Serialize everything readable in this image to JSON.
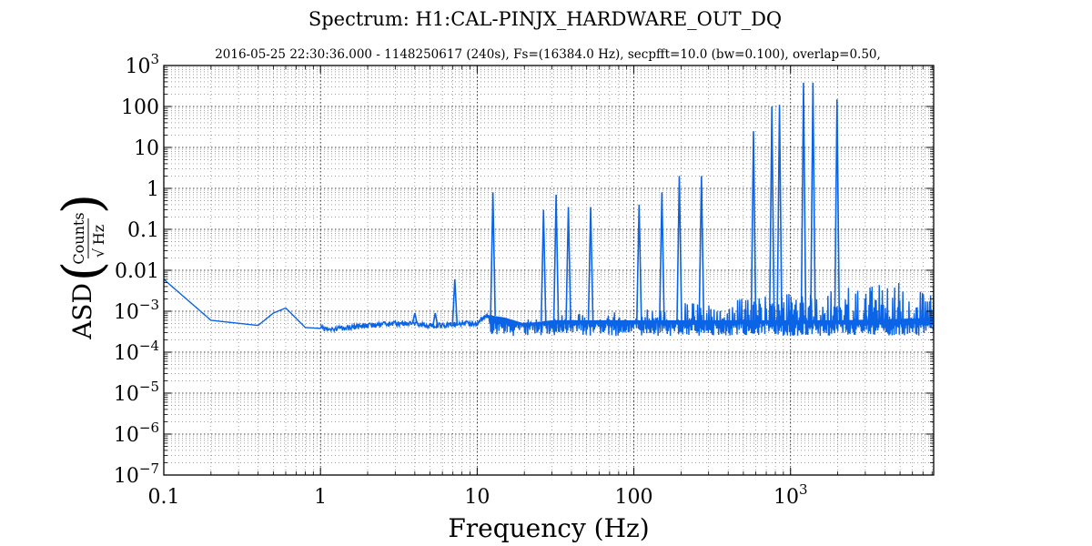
{
  "chart_data": {
    "type": "line",
    "title": "Spectrum: H1:CAL-PINJX_HARDWARE_OUT_DQ",
    "subtitle": "2016-05-25 22:30:36.000 - 1148250617 (240s), Fs=(16384.0 Hz), secpfft=10.0 (bw=0.100), overlap=0.50,",
    "xlabel": "Frequency (Hz)",
    "ylabel": {
      "prefix": "ASD",
      "numerator": "Counts",
      "denominator": "Hz"
    },
    "x_scale": "log",
    "y_scale": "log",
    "xlim": [
      0.1,
      8192
    ],
    "ylim": [
      1e-07,
      1000
    ],
    "grid": true,
    "x_ticks": [
      {
        "value": 0.1,
        "label": "0.1"
      },
      {
        "value": 1,
        "label": "1"
      },
      {
        "value": 10,
        "label": "10"
      },
      {
        "value": 100,
        "label": "100"
      },
      {
        "value": 1000,
        "base": "10",
        "exp": "3"
      }
    ],
    "y_ticks": [
      {
        "value": 1e-07,
        "base": "10",
        "exp": "−7"
      },
      {
        "value": 1e-06,
        "base": "10",
        "exp": "−6"
      },
      {
        "value": 1e-05,
        "base": "10",
        "exp": "−5"
      },
      {
        "value": 0.0001,
        "base": "10",
        "exp": "−4"
      },
      {
        "value": 0.001,
        "base": "10",
        "exp": "−3"
      },
      {
        "value": 0.01,
        "label": "0.01"
      },
      {
        "value": 0.1,
        "label": "0.1"
      },
      {
        "value": 1,
        "label": "1"
      },
      {
        "value": 10,
        "label": "10"
      },
      {
        "value": 100,
        "label": "100"
      },
      {
        "value": 1000,
        "base": "10",
        "exp": "3"
      }
    ],
    "series": [
      {
        "color": "#0b63e5",
        "baseline": {
          "x": [
            0.1,
            0.2,
            0.4,
            0.5,
            0.6,
            0.8,
            1.0,
            1.3,
            2,
            3,
            4,
            5,
            6,
            8,
            10,
            11,
            12,
            15,
            20,
            30,
            50,
            100,
            200,
            500,
            1000,
            2000,
            5000,
            8192
          ],
          "y": [
            0.006,
            0.0006,
            0.00045,
            0.0009,
            0.0012,
            0.0004,
            0.00038,
            0.00038,
            0.00045,
            0.0005,
            0.0005,
            0.00045,
            0.00045,
            0.0005,
            0.0005,
            0.0007,
            0.0008,
            0.0007,
            0.0005,
            0.0006,
            0.0006,
            0.0006,
            0.0006,
            0.0006,
            0.0006,
            0.0006,
            0.00065,
            0.0007
          ]
        },
        "peaks": [
          {
            "x": 12.6,
            "y": 0.8
          },
          {
            "x": 26.5,
            "y": 0.3
          },
          {
            "x": 31.9,
            "y": 0.7
          },
          {
            "x": 38.2,
            "y": 0.35
          },
          {
            "x": 53.0,
            "y": 0.35
          },
          {
            "x": 108,
            "y": 0.4
          },
          {
            "x": 151,
            "y": 0.8
          },
          {
            "x": 195,
            "y": 2.0
          },
          {
            "x": 270,
            "y": 2.0
          },
          {
            "x": 580,
            "y": 25
          },
          {
            "x": 760,
            "y": 100
          },
          {
            "x": 850,
            "y": 110
          },
          {
            "x": 1210,
            "y": 380
          },
          {
            "x": 1390,
            "y": 380
          },
          {
            "x": 1980,
            "y": 150
          },
          {
            "x": 4.0,
            "y": 0.0009
          },
          {
            "x": 5.4,
            "y": 0.0009
          },
          {
            "x": 7.2,
            "y": 0.006
          }
        ],
        "noise_band": {
          "x_range": [
            12,
            8192
          ],
          "low": 0.00025,
          "high": 0.006
        }
      }
    ]
  }
}
